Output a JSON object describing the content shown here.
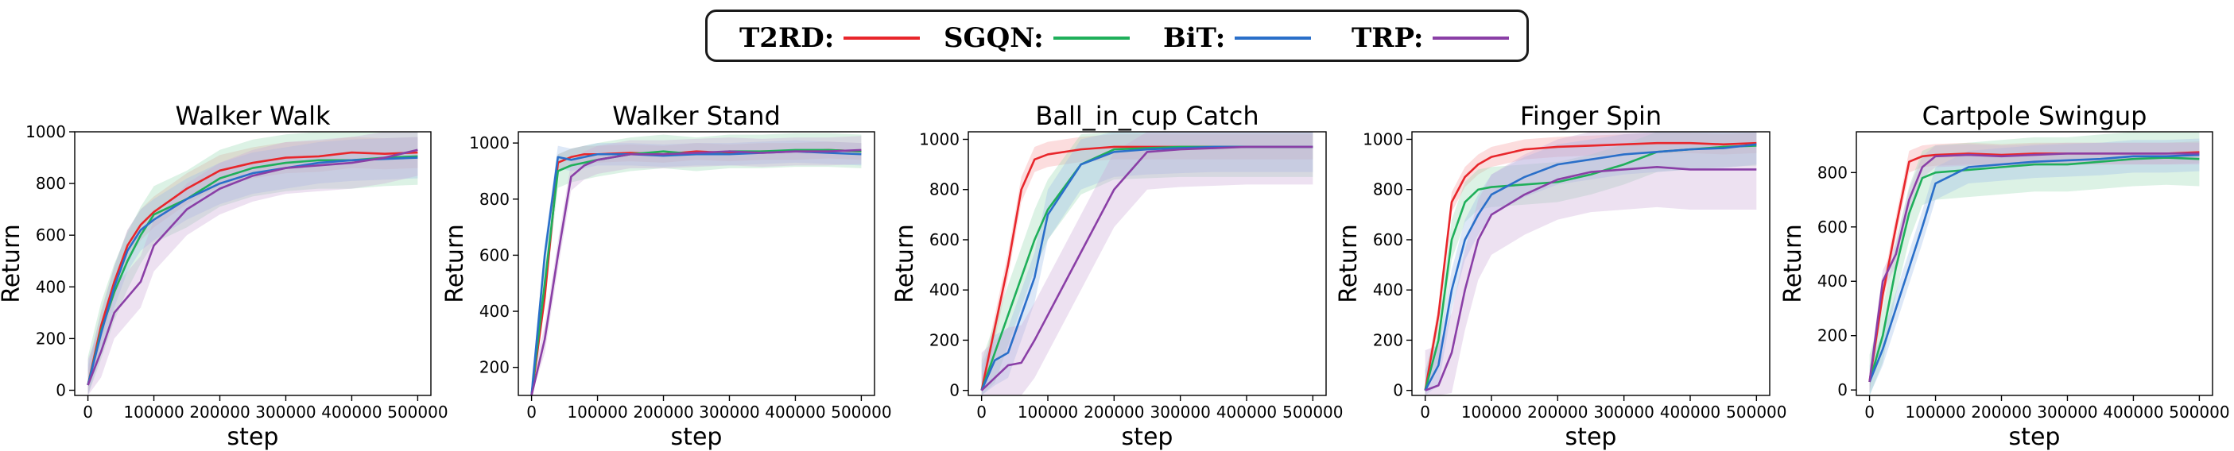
{
  "legend": {
    "items": [
      {
        "label": "T2RD:",
        "color": "#e8262b"
      },
      {
        "label": "SGQN:",
        "color": "#1faf5a"
      },
      {
        "label": "BiT:",
        "color": "#2a6fc9"
      },
      {
        "label": "TRP:",
        "color": "#8a3fa6"
      }
    ]
  },
  "colors": {
    "T2RD": "#e8262b",
    "SGQN": "#1faf5a",
    "BiT": "#2a6fc9",
    "TRP": "#8a3fa6"
  },
  "chart_data": [
    {
      "type": "line",
      "title": "Walker Walk",
      "xlabel": "step",
      "ylabel": "Return",
      "xlim": [
        -20000,
        520000
      ],
      "ylim": [
        -20,
        1000
      ],
      "xticks": [
        0,
        100000,
        200000,
        300000,
        400000,
        500000
      ],
      "yticks": [
        0,
        200,
        400,
        600,
        800,
        1000
      ],
      "x": [
        0,
        20000,
        40000,
        60000,
        80000,
        100000,
        150000,
        200000,
        250000,
        300000,
        350000,
        400000,
        450000,
        500000
      ],
      "series": [
        {
          "name": "T2RD",
          "values": [
            20,
            250,
            420,
            560,
            640,
            690,
            780,
            850,
            880,
            900,
            905,
            920,
            915,
            920
          ],
          "band": 60
        },
        {
          "name": "SGQN",
          "values": [
            20,
            230,
            380,
            500,
            600,
            680,
            740,
            820,
            860,
            880,
            890,
            890,
            900,
            905
          ],
          "band": 110
        },
        {
          "name": "BiT",
          "values": [
            20,
            220,
            400,
            540,
            620,
            660,
            740,
            800,
            840,
            860,
            880,
            890,
            895,
            900
          ],
          "band": 80
        },
        {
          "name": "TRP",
          "values": [
            20,
            150,
            300,
            360,
            420,
            560,
            700,
            780,
            830,
            860,
            870,
            880,
            900,
            930
          ],
          "band": 100
        }
      ]
    },
    {
      "type": "line",
      "title": "Walker Stand",
      "xlabel": "step",
      "ylabel": "Return",
      "xlim": [
        -20000,
        520000
      ],
      "ylim": [
        100,
        1040
      ],
      "xticks": [
        0,
        100000,
        200000,
        300000,
        400000,
        500000
      ],
      "yticks": [
        200,
        400,
        600,
        800,
        1000
      ],
      "x": [
        0,
        20000,
        40000,
        60000,
        80000,
        100000,
        150000,
        200000,
        250000,
        300000,
        350000,
        400000,
        450000,
        500000
      ],
      "series": [
        {
          "name": "T2RD",
          "values": [
            100,
            450,
            930,
            950,
            960,
            960,
            965,
            960,
            970,
            965,
            970,
            970,
            975,
            970
          ],
          "band": 30
        },
        {
          "name": "SGQN",
          "values": [
            100,
            500,
            900,
            920,
            930,
            940,
            960,
            970,
            960,
            970,
            970,
            975,
            975,
            970
          ],
          "band": 60
        },
        {
          "name": "BiT",
          "values": [
            100,
            600,
            950,
            940,
            950,
            960,
            960,
            955,
            960,
            960,
            965,
            970,
            965,
            960
          ],
          "band": 40
        },
        {
          "name": "TRP",
          "values": [
            100,
            300,
            600,
            880,
            920,
            940,
            960,
            960,
            965,
            970,
            965,
            970,
            970,
            975
          ],
          "band": 50
        }
      ]
    },
    {
      "type": "line",
      "title": "Ball_in_cup Catch",
      "xlabel": "step",
      "ylabel": "Return",
      "xlim": [
        -20000,
        520000
      ],
      "ylim": [
        -20,
        1030
      ],
      "xticks": [
        0,
        100000,
        200000,
        300000,
        400000,
        500000
      ],
      "yticks": [
        0,
        200,
        400,
        600,
        800,
        1000
      ],
      "x": [
        0,
        20000,
        40000,
        60000,
        80000,
        100000,
        150000,
        200000,
        250000,
        300000,
        350000,
        400000,
        450000,
        500000
      ],
      "series": [
        {
          "name": "T2RD",
          "values": [
            0,
            250,
            500,
            800,
            920,
            940,
            960,
            970,
            970,
            970,
            970,
            970,
            970,
            970
          ],
          "band": 50
        },
        {
          "name": "SGQN",
          "values": [
            0,
            150,
            300,
            450,
            600,
            720,
            900,
            960,
            965,
            970,
            970,
            970,
            970,
            970
          ],
          "band": 120
        },
        {
          "name": "BiT",
          "values": [
            0,
            120,
            150,
            300,
            450,
            700,
            900,
            950,
            960,
            965,
            970,
            970,
            970,
            970
          ],
          "band": 100
        },
        {
          "name": "TRP",
          "values": [
            0,
            50,
            100,
            110,
            200,
            300,
            550,
            800,
            950,
            960,
            965,
            970,
            970,
            970
          ],
          "band": 150
        }
      ]
    },
    {
      "type": "line",
      "title": "Finger Spin",
      "xlabel": "step",
      "ylabel": "Return",
      "xlim": [
        -20000,
        520000
      ],
      "ylim": [
        -20,
        1030
      ],
      "xticks": [
        0,
        100000,
        200000,
        300000,
        400000,
        500000
      ],
      "yticks": [
        0,
        200,
        400,
        600,
        800,
        1000
      ],
      "x": [
        0,
        20000,
        40000,
        60000,
        80000,
        100000,
        150000,
        200000,
        250000,
        300000,
        350000,
        400000,
        450000,
        500000
      ],
      "series": [
        {
          "name": "T2RD",
          "values": [
            0,
            300,
            750,
            850,
            900,
            930,
            960,
            970,
            975,
            980,
            985,
            985,
            980,
            985
          ],
          "band": 40
        },
        {
          "name": "SGQN",
          "values": [
            0,
            200,
            600,
            750,
            800,
            810,
            820,
            830,
            860,
            900,
            950,
            960,
            970,
            975
          ],
          "band": 80
        },
        {
          "name": "BiT",
          "values": [
            0,
            100,
            400,
            600,
            700,
            780,
            850,
            900,
            920,
            940,
            950,
            960,
            965,
            980
          ],
          "band": 80
        },
        {
          "name": "TRP",
          "values": [
            0,
            20,
            150,
            400,
            600,
            700,
            780,
            840,
            870,
            880,
            890,
            880,
            880,
            880
          ],
          "band": 160
        }
      ]
    },
    {
      "type": "line",
      "title": "Cartpole Swingup",
      "xlabel": "step",
      "ylabel": "Return",
      "xlim": [
        -20000,
        520000
      ],
      "ylim": [
        -20,
        950
      ],
      "xticks": [
        0,
        100000,
        200000,
        300000,
        400000,
        500000
      ],
      "yticks": [
        0,
        200,
        400,
        600,
        800
      ],
      "x": [
        0,
        20000,
        40000,
        60000,
        80000,
        100000,
        150000,
        200000,
        250000,
        300000,
        350000,
        400000,
        450000,
        500000
      ],
      "series": [
        {
          "name": "T2RD",
          "values": [
            30,
            350,
            600,
            840,
            860,
            865,
            870,
            865,
            870,
            870,
            870,
            870,
            870,
            875
          ],
          "band": 40
        },
        {
          "name": "SGQN",
          "values": [
            30,
            200,
            450,
            650,
            780,
            800,
            810,
            820,
            830,
            830,
            840,
            850,
            855,
            850
          ],
          "band": 100
        },
        {
          "name": "BiT",
          "values": [
            30,
            150,
            300,
            450,
            600,
            760,
            820,
            830,
            840,
            845,
            850,
            860,
            860,
            865
          ],
          "band": 60
        },
        {
          "name": "TRP",
          "values": [
            30,
            400,
            500,
            700,
            820,
            860,
            865,
            860,
            865,
            870,
            870,
            870,
            870,
            870
          ],
          "band": 40
        }
      ]
    }
  ]
}
